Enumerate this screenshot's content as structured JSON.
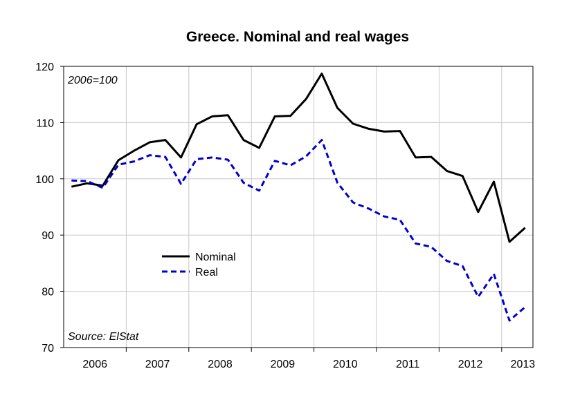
{
  "chart_data": {
    "type": "line",
    "title": "Greece. Nominal and real wages",
    "index_note": "2006=100",
    "source": "Source: ElStat",
    "xlabel": "",
    "ylabel": "",
    "ylim": [
      70,
      120
    ],
    "yticks": [
      70,
      80,
      90,
      100,
      110,
      120
    ],
    "year_labels": [
      "2006",
      "2007",
      "2008",
      "2009",
      "2010",
      "2011",
      "2012",
      "2013"
    ],
    "grid": true,
    "legend_position": "center-left",
    "x": [
      "2006Q1",
      "2006Q2",
      "2006Q3",
      "2006Q4",
      "2007Q1",
      "2007Q2",
      "2007Q3",
      "2007Q4",
      "2008Q1",
      "2008Q2",
      "2008Q3",
      "2008Q4",
      "2009Q1",
      "2009Q2",
      "2009Q3",
      "2009Q4",
      "2010Q1",
      "2010Q2",
      "2010Q3",
      "2010Q4",
      "2011Q1",
      "2011Q2",
      "2011Q3",
      "2011Q4",
      "2012Q1",
      "2012Q2",
      "2012Q3",
      "2012Q4",
      "2013Q1",
      "2013Q2"
    ],
    "series": [
      {
        "name": "Nominal",
        "color": "#000000",
        "dash": "solid",
        "values": [
          98.6,
          99.2,
          98.8,
          103.3,
          105.0,
          106.5,
          106.9,
          103.8,
          109.7,
          111.1,
          111.3,
          106.9,
          105.5,
          111.1,
          111.2,
          114.2,
          118.7,
          112.6,
          109.8,
          108.9,
          108.4,
          108.5,
          103.8,
          103.9,
          101.4,
          100.5,
          94.1,
          99.5,
          88.8,
          91.3
        ]
      },
      {
        "name": "Real",
        "color": "#0000cc",
        "dash": "dashed",
        "values": [
          99.7,
          99.6,
          98.4,
          102.5,
          103.1,
          104.2,
          103.9,
          99.1,
          103.5,
          103.8,
          103.4,
          99.3,
          97.9,
          103.2,
          102.4,
          104.0,
          106.9,
          99.3,
          95.8,
          94.7,
          93.3,
          92.7,
          88.5,
          87.9,
          85.4,
          84.5,
          79.0,
          83.1,
          74.8,
          77.2
        ]
      }
    ]
  }
}
